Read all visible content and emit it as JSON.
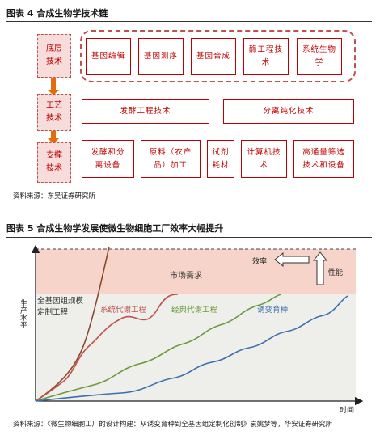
{
  "figure4": {
    "title": "图表 4 合成生物学技术链",
    "rows": [
      {
        "label": "底层技术",
        "items": [
          "基因编辑",
          "基因测序",
          "基因合成",
          "酶工程技术",
          "系统生物学"
        ]
      },
      {
        "label": "工艺技术",
        "items": [
          "发酵工程技术",
          "分离纯化技术"
        ]
      },
      {
        "label": "支撑技术",
        "items": [
          "发酵和分离设备",
          "原料（农产品）加工",
          "试剂耗材",
          "计算机技术",
          "高通量筛选技术和设备"
        ]
      }
    ],
    "source": "资料来源：东吴证券研究所"
  },
  "figure5": {
    "title": "图表 5 合成生物学发展使微生物细胞工厂效率大幅提升",
    "y_axis_label": "生产水平",
    "x_axis_label": "时间",
    "market_demand": "市场需求",
    "efficiency_label": "效率",
    "performance_label": "性能",
    "series": [
      {
        "name": "全基因组规模定制工程",
        "color": "#8b4a2b"
      },
      {
        "name": "系统代谢工程",
        "color": "#c0504d"
      },
      {
        "name": "经典代谢工程",
        "color": "#6b9a3a"
      },
      {
        "name": "诱变育种",
        "color": "#3a6fb0"
      }
    ],
    "source": "资料来源：《微生物细胞工厂的设计构建：从诱变育种到全基因组定制化创制》袁姚梦等，华安证券研究所"
  }
}
